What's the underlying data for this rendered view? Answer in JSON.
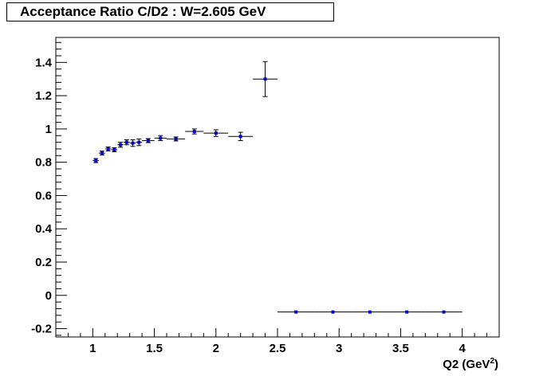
{
  "chart_data": {
    "type": "scatter",
    "title": "Acceptance Ratio C/D2 : W=2.605 GeV",
    "xlabel": "Q2 (GeV",
    "xlabel_sup": "2",
    "xlabel_close": ")",
    "ylabel": "",
    "xlim": [
      0.7,
      4.3
    ],
    "ylim": [
      -0.25,
      1.55
    ],
    "x_ticks": [
      {
        "value": 1,
        "label": "1"
      },
      {
        "value": 1.5,
        "label": "1.5"
      },
      {
        "value": 2,
        "label": "2"
      },
      {
        "value": 2.5,
        "label": "2.5"
      },
      {
        "value": 3,
        "label": "3"
      },
      {
        "value": 3.5,
        "label": "3.5"
      },
      {
        "value": 4,
        "label": "4"
      }
    ],
    "y_ticks": [
      {
        "value": -0.2,
        "label": "-0.2"
      },
      {
        "value": 0,
        "label": "0"
      },
      {
        "value": 0.2,
        "label": "0.2"
      },
      {
        "value": 0.4,
        "label": "0.4"
      },
      {
        "value": 0.6,
        "label": "0.6"
      },
      {
        "value": 0.8,
        "label": "0.8"
      },
      {
        "value": 1,
        "label": "1"
      },
      {
        "value": 1.2,
        "label": "1.2"
      },
      {
        "value": 1.4,
        "label": "1.4"
      }
    ],
    "grid": false,
    "marker_color": "#0000cc",
    "points": [
      {
        "x": 1.025,
        "y": 0.81,
        "xerr": 0.025,
        "yerr": 0.012
      },
      {
        "x": 1.075,
        "y": 0.855,
        "xerr": 0.025,
        "yerr": 0.012
      },
      {
        "x": 1.125,
        "y": 0.88,
        "xerr": 0.025,
        "yerr": 0.012
      },
      {
        "x": 1.175,
        "y": 0.875,
        "xerr": 0.025,
        "yerr": 0.012
      },
      {
        "x": 1.225,
        "y": 0.905,
        "xerr": 0.025,
        "yerr": 0.015
      },
      {
        "x": 1.275,
        "y": 0.92,
        "xerr": 0.025,
        "yerr": 0.015
      },
      {
        "x": 1.325,
        "y": 0.915,
        "xerr": 0.025,
        "yerr": 0.02
      },
      {
        "x": 1.375,
        "y": 0.92,
        "xerr": 0.025,
        "yerr": 0.02
      },
      {
        "x": 1.45,
        "y": 0.93,
        "xerr": 0.05,
        "yerr": 0.012
      },
      {
        "x": 1.55,
        "y": 0.945,
        "xerr": 0.05,
        "yerr": 0.015
      },
      {
        "x": 1.675,
        "y": 0.94,
        "xerr": 0.075,
        "yerr": 0.012
      },
      {
        "x": 1.825,
        "y": 0.985,
        "xerr": 0.075,
        "yerr": 0.015
      },
      {
        "x": 2.0,
        "y": 0.975,
        "xerr": 0.1,
        "yerr": 0.02
      },
      {
        "x": 2.2,
        "y": 0.955,
        "xerr": 0.1,
        "yerr": 0.025
      },
      {
        "x": 2.4,
        "y": 1.3,
        "xerr": 0.1,
        "yerr": 0.105
      },
      {
        "x": 2.65,
        "y": -0.1,
        "xerr": 0.15,
        "yerr": 0.0
      },
      {
        "x": 2.95,
        "y": -0.1,
        "xerr": 0.15,
        "yerr": 0.0
      },
      {
        "x": 3.25,
        "y": -0.1,
        "xerr": 0.15,
        "yerr": 0.0
      },
      {
        "x": 3.55,
        "y": -0.1,
        "xerr": 0.15,
        "yerr": 0.0
      },
      {
        "x": 3.85,
        "y": -0.1,
        "xerr": 0.15,
        "yerr": 0.0
      }
    ]
  }
}
